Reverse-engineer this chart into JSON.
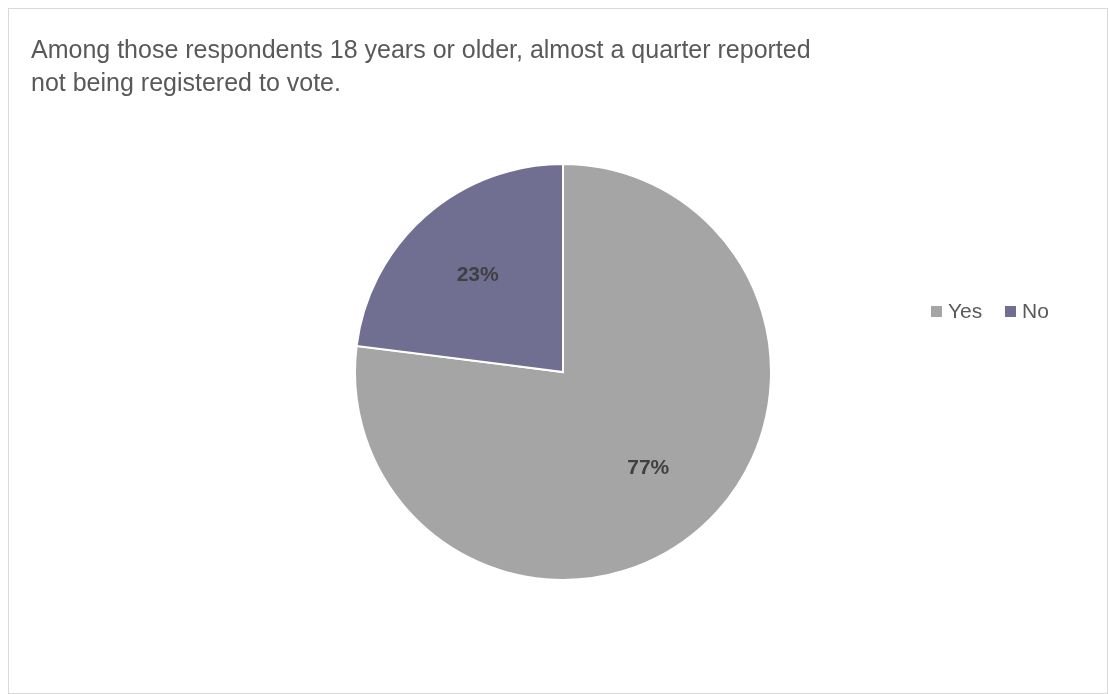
{
  "chart_data": {
    "type": "pie",
    "title": "Among those respondents 18 years or older, almost a quarter reported not being registered to vote.",
    "categories": [
      "Yes",
      "No"
    ],
    "values": [
      77,
      23
    ],
    "colors": [
      "#a5a5a5",
      "#706e91"
    ],
    "value_labels": [
      "77%",
      "23%"
    ],
    "legend": "right"
  }
}
